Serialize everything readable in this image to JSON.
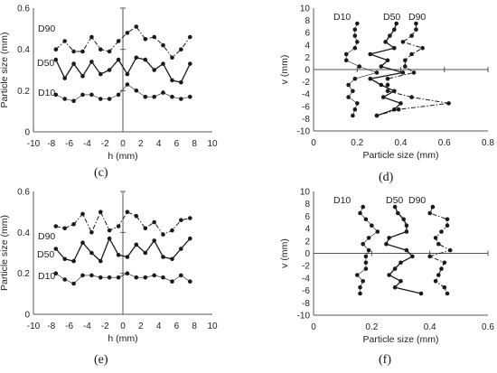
{
  "colors": {
    "series": "#1a1a1a",
    "axis": "#555555",
    "tick_text": "#333333"
  },
  "chart_data": [
    {
      "type": "line",
      "panel_label": "(c)",
      "xlabel": "h (mm)",
      "ylabel": "Particle size (mm)",
      "xlim": [
        -10,
        10
      ],
      "ylim": [
        0,
        0.6
      ],
      "xticks": [
        -10,
        -8,
        -6,
        -4,
        -2,
        0,
        2,
        4,
        6,
        8,
        10
      ],
      "yticks": [
        0,
        0.2,
        0.4,
        0.6
      ],
      "grid": false,
      "reference_line": "vertical at h = 0",
      "x": [
        -7.5,
        -6.5,
        -5.5,
        -4.5,
        -3.5,
        -2.5,
        -1.5,
        -0.5,
        0.5,
        1.5,
        2.5,
        3.5,
        4.5,
        5.5,
        6.5,
        7.5
      ],
      "series": [
        {
          "name": "D90",
          "style": "dash-dot",
          "values": [
            0.4,
            0.44,
            0.39,
            0.39,
            0.46,
            0.4,
            0.39,
            0.44,
            0.48,
            0.51,
            0.45,
            0.46,
            0.42,
            0.36,
            0.4,
            0.46
          ]
        },
        {
          "name": "D50",
          "style": "solid",
          "values": [
            0.35,
            0.26,
            0.33,
            0.27,
            0.34,
            0.28,
            0.3,
            0.35,
            0.28,
            0.36,
            0.35,
            0.3,
            0.33,
            0.25,
            0.24,
            0.33
          ]
        },
        {
          "name": "D10",
          "style": "thin",
          "values": [
            0.18,
            0.16,
            0.15,
            0.18,
            0.18,
            0.16,
            0.16,
            0.18,
            0.23,
            0.2,
            0.17,
            0.17,
            0.19,
            0.17,
            0.16,
            0.17
          ]
        }
      ]
    },
    {
      "type": "line",
      "panel_label": "(d)",
      "xlabel": "Particle size (mm)",
      "ylabel": "v (mm)",
      "xlim": [
        0,
        0.8
      ],
      "ylim": [
        -10,
        10
      ],
      "xticks": [
        0,
        0.2,
        0.4,
        0.6,
        0.8
      ],
      "yticks": [
        -10,
        -8,
        -6,
        -4,
        -2,
        0,
        2,
        4,
        6,
        8,
        10
      ],
      "grid": false,
      "reference_line": "horizontal at v = 0",
      "y": [
        7.5,
        6.5,
        5.5,
        4.5,
        3.5,
        2.5,
        1.5,
        0.5,
        -0.5,
        -1.5,
        -2.5,
        -3.5,
        -4.5,
        -5.5,
        -6.5,
        -7.5
      ],
      "series": [
        {
          "name": "D10",
          "style": "thin",
          "values": [
            0.2,
            0.19,
            0.19,
            0.2,
            0.19,
            0.15,
            0.15,
            0.21,
            0.29,
            0.19,
            0.16,
            0.18,
            0.16,
            0.2,
            0.19,
            0.18
          ]
        },
        {
          "name": "D50",
          "style": "solid",
          "values": [
            0.38,
            0.37,
            0.35,
            0.33,
            0.37,
            0.26,
            0.34,
            0.31,
            0.41,
            0.26,
            0.31,
            0.37,
            0.32,
            0.4,
            0.37,
            0.29
          ]
        },
        {
          "name": "D90",
          "style": "dash-dot",
          "values": [
            0.47,
            0.47,
            0.45,
            0.41,
            0.5,
            0.45,
            0.42,
            0.42,
            0.46,
            0.34,
            0.34,
            0.34,
            0.45,
            0.62,
            0.39,
            0.29
          ]
        }
      ]
    },
    {
      "type": "line",
      "panel_label": "(e)",
      "xlabel": "h (mm)",
      "ylabel": "Particle size (mm)",
      "xlim": [
        -10,
        10
      ],
      "ylim": [
        0,
        0.6
      ],
      "xticks": [
        -10,
        -8,
        -6,
        -4,
        -2,
        0,
        2,
        4,
        6,
        8,
        10
      ],
      "yticks": [
        0,
        0.2,
        0.4,
        0.6
      ],
      "grid": false,
      "reference_line": "vertical at h = 0",
      "x": [
        -7.5,
        -6.5,
        -5.5,
        -4.5,
        -3.5,
        -2.5,
        -1.5,
        -0.5,
        0.5,
        1.5,
        2.5,
        3.5,
        4.5,
        5.5,
        6.5,
        7.5
      ],
      "series": [
        {
          "name": "D90",
          "style": "dash-dot",
          "values": [
            0.43,
            0.42,
            0.44,
            0.49,
            0.4,
            0.5,
            0.41,
            0.43,
            0.5,
            0.48,
            0.42,
            0.45,
            0.39,
            0.41,
            0.46,
            0.47
          ]
        },
        {
          "name": "D50",
          "style": "solid",
          "values": [
            0.32,
            0.27,
            0.26,
            0.35,
            0.3,
            0.26,
            0.37,
            0.29,
            0.28,
            0.34,
            0.3,
            0.36,
            0.28,
            0.27,
            0.32,
            0.37
          ]
        },
        {
          "name": "D10",
          "style": "thin",
          "values": [
            0.2,
            0.17,
            0.15,
            0.19,
            0.19,
            0.18,
            0.18,
            0.18,
            0.2,
            0.18,
            0.18,
            0.19,
            0.18,
            0.16,
            0.19,
            0.16
          ]
        }
      ]
    },
    {
      "type": "line",
      "panel_label": "(f)",
      "xlabel": "Particle size (mm)",
      "ylabel": "v (mm)",
      "xlim": [
        0,
        0.6
      ],
      "ylim": [
        -10,
        10
      ],
      "xticks": [
        0,
        0.2,
        0.4,
        0.6
      ],
      "yticks": [
        -10,
        -8,
        -6,
        -4,
        -2,
        0,
        2,
        4,
        6,
        8,
        10
      ],
      "grid": false,
      "reference_line": "horizontal at v = 0",
      "y": [
        7.5,
        6.5,
        5.5,
        4.5,
        3.5,
        2.5,
        1.5,
        0.5,
        -0.5,
        -1.5,
        -2.5,
        -3.5,
        -4.5,
        -5.5,
        -6.5
      ],
      "series": [
        {
          "name": "D10",
          "style": "thin",
          "values": [
            0.17,
            0.16,
            0.18,
            0.2,
            0.22,
            0.19,
            0.17,
            0.19,
            0.18,
            0.18,
            0.18,
            0.15,
            0.17,
            0.16,
            0.16
          ]
        },
        {
          "name": "D50",
          "style": "solid",
          "values": [
            0.28,
            0.29,
            0.31,
            0.32,
            0.32,
            0.26,
            0.25,
            0.32,
            0.34,
            0.3,
            0.28,
            0.26,
            0.3,
            0.28,
            0.37
          ]
        },
        {
          "name": "D90",
          "style": "dash-dot",
          "values": [
            0.41,
            0.4,
            0.46,
            0.46,
            0.44,
            0.42,
            0.43,
            0.47,
            0.4,
            0.45,
            0.44,
            0.43,
            0.42,
            0.45,
            0.46
          ]
        }
      ]
    }
  ]
}
